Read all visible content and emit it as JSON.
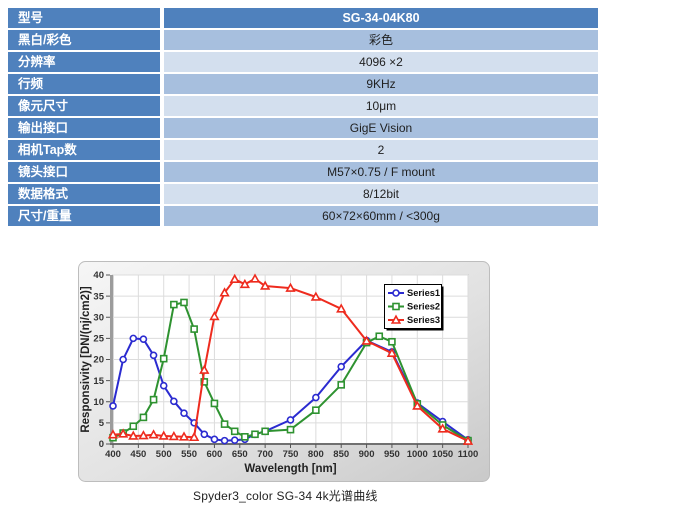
{
  "table": {
    "colors": {
      "header_blue": "#4F81BD",
      "row_medium": "#A7BFDE",
      "row_light": "#D3DFEE",
      "value_text": "#1f1f1f"
    },
    "rows": [
      {
        "label": "型号",
        "value": "SG-34-04K80",
        "header": true
      },
      {
        "label": "黑白/彩色",
        "value": "彩色",
        "header": false
      },
      {
        "label": "分辨率",
        "value": "4096 ×2",
        "header": false
      },
      {
        "label": "行频",
        "value": "9KHz",
        "header": false
      },
      {
        "label": "像元尺寸",
        "value": "10μm",
        "header": false
      },
      {
        "label": "输出接口",
        "value": "GigE Vision",
        "header": false
      },
      {
        "label": "相机Tap数",
        "value": "2",
        "header": false
      },
      {
        "label": "镜头接口",
        "value": "M57×0.75 / F mount",
        "header": false
      },
      {
        "label": "数据格式",
        "value": "8/12bit",
        "header": false
      },
      {
        "label": "尺寸/重量",
        "value": "60×72×60mm / <300g",
        "header": false
      }
    ]
  },
  "chart_data": {
    "type": "line",
    "title": "",
    "xlabel": "Wavelength [nm]",
    "ylabel": "Responsivity [DN/(nj/cm2)]",
    "xlim": [
      400,
      1100
    ],
    "ylim": [
      0,
      40
    ],
    "xticks": [
      400,
      450,
      500,
      550,
      600,
      650,
      700,
      750,
      800,
      850,
      900,
      950,
      1000,
      1050,
      1100
    ],
    "yticks": [
      0,
      5,
      10,
      15,
      20,
      25,
      30,
      35,
      40
    ],
    "grid": true,
    "legend_position": "top-right",
    "series": [
      {
        "name": "Series1",
        "color": "#2B2BD0",
        "marker": "circle",
        "points": [
          [
            400,
            9
          ],
          [
            420,
            20
          ],
          [
            440,
            25
          ],
          [
            460,
            24.8
          ],
          [
            480,
            21
          ],
          [
            500,
            13.8
          ],
          [
            520,
            10.1
          ],
          [
            540,
            7.3
          ],
          [
            560,
            5.0
          ],
          [
            580,
            2.3
          ],
          [
            600,
            1.1
          ],
          [
            620,
            0.8
          ],
          [
            640,
            0.9
          ],
          [
            660,
            1.1
          ],
          [
            680,
            2.3
          ],
          [
            700,
            3.0
          ],
          [
            750,
            5.7
          ],
          [
            800,
            11.0
          ],
          [
            850,
            18.3
          ],
          [
            900,
            24.5
          ],
          [
            950,
            21.8
          ],
          [
            1000,
            9.7
          ],
          [
            1050,
            5.3
          ],
          [
            1100,
            1.0
          ]
        ]
      },
      {
        "name": "Series2",
        "color": "#2E9230",
        "marker": "square",
        "points": [
          [
            400,
            1.5
          ],
          [
            420,
            2.6
          ],
          [
            440,
            4.2
          ],
          [
            460,
            6.3
          ],
          [
            480,
            10.5
          ],
          [
            500,
            20.2
          ],
          [
            520,
            33.0
          ],
          [
            540,
            33.5
          ],
          [
            560,
            27.2
          ],
          [
            580,
            14.7
          ],
          [
            600,
            9.6
          ],
          [
            620,
            4.7
          ],
          [
            640,
            3.0
          ],
          [
            660,
            1.7
          ],
          [
            680,
            2.3
          ],
          [
            700,
            3.0
          ],
          [
            750,
            3.4
          ],
          [
            800,
            8.0
          ],
          [
            850,
            14.0
          ],
          [
            900,
            24.0
          ],
          [
            925,
            25.5
          ],
          [
            950,
            24.2
          ],
          [
            1000,
            9.5
          ],
          [
            1050,
            4.5
          ],
          [
            1100,
            0.8
          ]
        ]
      },
      {
        "name": "Series3",
        "color": "#EE2B1E",
        "marker": "triangle",
        "points": [
          [
            400,
            2.2
          ],
          [
            420,
            2.4
          ],
          [
            440,
            1.9
          ],
          [
            460,
            2.0
          ],
          [
            480,
            2.2
          ],
          [
            500,
            1.9
          ],
          [
            520,
            1.8
          ],
          [
            540,
            1.7
          ],
          [
            560,
            1.6
          ],
          [
            580,
            17.5
          ],
          [
            600,
            30.2
          ],
          [
            620,
            35.8
          ],
          [
            640,
            39.0
          ],
          [
            660,
            37.8
          ],
          [
            680,
            39.1
          ],
          [
            700,
            37.4
          ],
          [
            750,
            36.9
          ],
          [
            800,
            34.8
          ],
          [
            850,
            32.0
          ],
          [
            900,
            24.4
          ],
          [
            950,
            21.5
          ],
          [
            1000,
            9.0
          ],
          [
            1050,
            3.6
          ],
          [
            1100,
            0.7
          ]
        ]
      }
    ]
  },
  "caption": "Spyder3_color SG-34 4k光谱曲线"
}
